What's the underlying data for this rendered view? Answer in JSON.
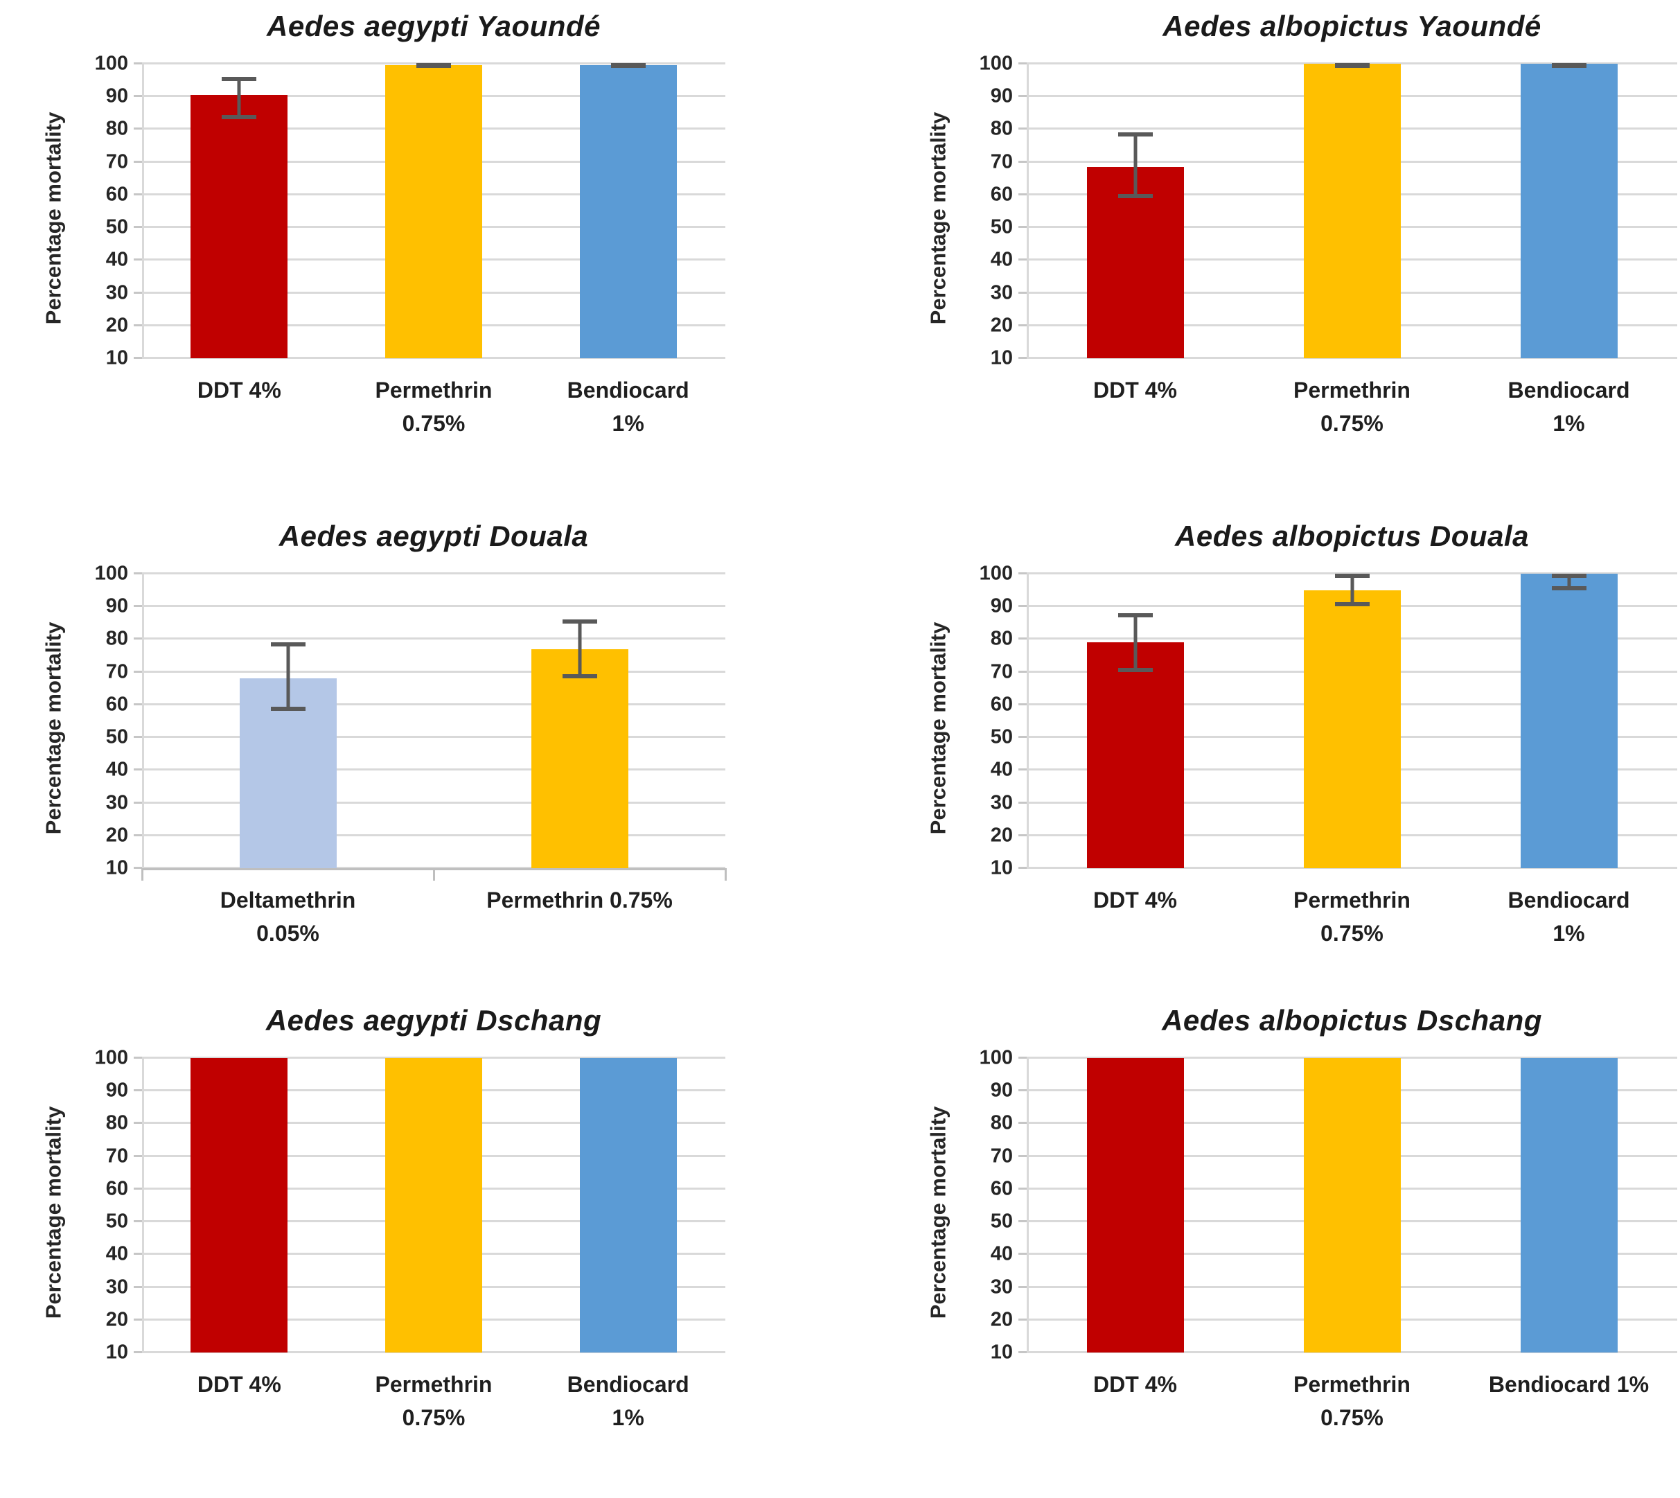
{
  "page": {
    "background": "#ffffff"
  },
  "y_axis": {
    "title": "Percentage mortality",
    "min": 10,
    "max": 100,
    "ticks": [
      100,
      90,
      80,
      70,
      60,
      50,
      40,
      30,
      20,
      10
    ]
  },
  "style": {
    "grid_color": "#d9d9d9",
    "axis_color": "#bfbfbf",
    "error_bar_color": "#595959",
    "tick_label_color": "#262626",
    "title_color": "#1a1a1a",
    "bar_red": "#C00000",
    "bar_yellow": "#FFC000",
    "bar_blue": "#5B9BD5",
    "bar_light_blue": "#B4C7E7"
  },
  "chart_data": [
    {
      "type": "bar",
      "title": "Aedes aegypti Yaoundé",
      "ylabel": "Percentage mortality",
      "ylim": [
        10,
        100
      ],
      "grid": true,
      "categories": [
        [
          "DDT 4%"
        ],
        [
          "Permethrin",
          "0.75%"
        ],
        [
          "Bendiocard",
          "1%"
        ]
      ],
      "values": [
        90.5,
        99.5,
        99.5
      ],
      "errors": [
        [
          83,
          96
        ],
        [
          99,
          100
        ],
        [
          99,
          100
        ]
      ],
      "colors": [
        "#C00000",
        "#FFC000",
        "#5B9BD5"
      ],
      "x_axis_line": false
    },
    {
      "type": "bar",
      "title": "Aedes albopictus Yaoundé",
      "ylabel": "Percentage mortality",
      "ylim": [
        10,
        100
      ],
      "grid": true,
      "categories": [
        [
          "DDT 4%"
        ],
        [
          "Permethrin",
          "0.75%"
        ],
        [
          "Bendiocard",
          "1%"
        ]
      ],
      "values": [
        68.5,
        100,
        100
      ],
      "errors": [
        [
          59,
          79
        ],
        [
          99,
          100
        ],
        [
          99,
          100
        ]
      ],
      "colors": [
        "#C00000",
        "#FFC000",
        "#5B9BD5"
      ],
      "x_axis_line": false
    },
    {
      "type": "bar",
      "title": "Aedes aegypti Douala",
      "ylabel": "Percentage mortality",
      "ylim": [
        10,
        100
      ],
      "grid": true,
      "categories": [
        [
          "Deltamethrin",
          "0.05%"
        ],
        [
          "Permethrin 0.75%"
        ]
      ],
      "values": [
        68,
        77
      ],
      "errors": [
        [
          58,
          79
        ],
        [
          68,
          86
        ]
      ],
      "colors": [
        "#B4C7E7",
        "#FFC000"
      ],
      "x_axis_line": true
    },
    {
      "type": "bar",
      "title": "Aedes albopictus Douala",
      "ylabel": "Percentage mortality",
      "ylim": [
        10,
        100
      ],
      "grid": true,
      "categories": [
        [
          "DDT 4%"
        ],
        [
          "Permethrin",
          "0.75%"
        ],
        [
          "Bendiocard",
          "1%"
        ]
      ],
      "values": [
        79,
        95,
        100
      ],
      "errors": [
        [
          70,
          88
        ],
        [
          90,
          100
        ],
        [
          95,
          100
        ]
      ],
      "colors": [
        "#C00000",
        "#FFC000",
        "#5B9BD5"
      ],
      "x_axis_line": false
    },
    {
      "type": "bar",
      "title": "Aedes aegypti Dschang",
      "ylabel": "Percentage mortality",
      "ylim": [
        10,
        100
      ],
      "grid": true,
      "categories": [
        [
          "DDT 4%"
        ],
        [
          "Permethrin",
          "0.75%"
        ],
        [
          "Bendiocard",
          "1%"
        ]
      ],
      "values": [
        100,
        100,
        100
      ],
      "errors": [
        null,
        null,
        null
      ],
      "colors": [
        "#C00000",
        "#FFC000",
        "#5B9BD5"
      ],
      "x_axis_line": false
    },
    {
      "type": "bar",
      "title": "Aedes albopictus Dschang",
      "ylabel": "Percentage mortality",
      "ylim": [
        10,
        100
      ],
      "grid": true,
      "categories": [
        [
          "DDT 4%"
        ],
        [
          "Permethrin",
          "0.75%"
        ],
        [
          "Bendiocard 1%"
        ]
      ],
      "values": [
        100,
        100,
        100
      ],
      "errors": [
        null,
        null,
        null
      ],
      "colors": [
        "#C00000",
        "#FFC000",
        "#5B9BD5"
      ],
      "x_axis_line": false
    }
  ]
}
